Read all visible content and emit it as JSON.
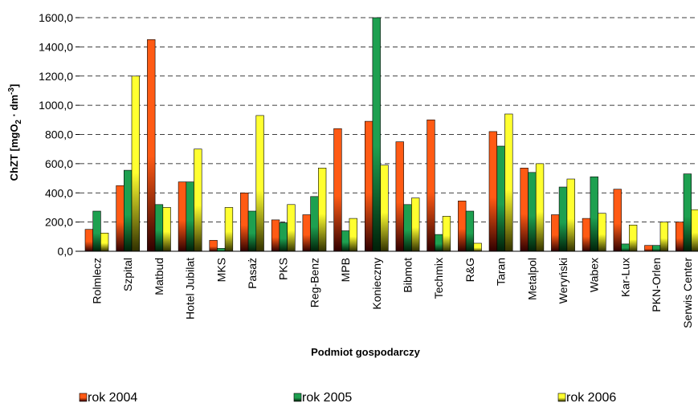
{
  "chart_data": {
    "type": "bar",
    "xlabel": "Podmiot gospodarczy",
    "ylabel_main": "ChZT  [mgO",
    "ylabel_sub1": "2",
    "ylabel_mid": " · dm",
    "ylabel_sup": "-3",
    "ylabel_end": "]",
    "ylim": [
      0,
      1600
    ],
    "yticks": [
      "0,0",
      "200,0",
      "400,0",
      "600,0",
      "800,0",
      "1000,0",
      "1200,0",
      "1400,0",
      "1600,0"
    ],
    "grid": true,
    "legend_position": "bottom",
    "categories": [
      "Rolmlecz",
      "Szpital",
      "Matbud",
      "Hotel Jubilat",
      "MKS",
      "Pasaż",
      "PKS",
      "Reg-Benz",
      "MPB",
      "Konieczny",
      "Bibmot",
      "Techmix",
      "R&G",
      "Taran",
      "Metalpol",
      "Weryński",
      "Wabex",
      "Kar-Lux",
      "PKN-Orlen",
      "Serwis Center"
    ],
    "series": [
      {
        "name": "rok 2004",
        "values": [
          150,
          450,
          1450,
          475,
          75,
          400,
          215,
          250,
          840,
          890,
          750,
          900,
          345,
          820,
          570,
          250,
          225,
          425,
          40,
          200
        ]
      },
      {
        "name": "rok 2005",
        "values": [
          275,
          555,
          320,
          475,
          20,
          275,
          195,
          375,
          140,
          1620,
          320,
          115,
          275,
          720,
          540,
          440,
          510,
          50,
          40,
          530
        ]
      },
      {
        "name": "rok 2006",
        "values": [
          125,
          1200,
          300,
          700,
          300,
          930,
          320,
          570,
          225,
          590,
          365,
          240,
          55,
          940,
          600,
          495,
          260,
          180,
          200,
          285
        ]
      }
    ],
    "colors": {
      "series_top": [
        "#ff5a14",
        "#1ea050",
        "#ffff30"
      ],
      "series_bottom": [
        "#300000",
        "#002008",
        "#303000"
      ],
      "grid": "#000000"
    }
  }
}
